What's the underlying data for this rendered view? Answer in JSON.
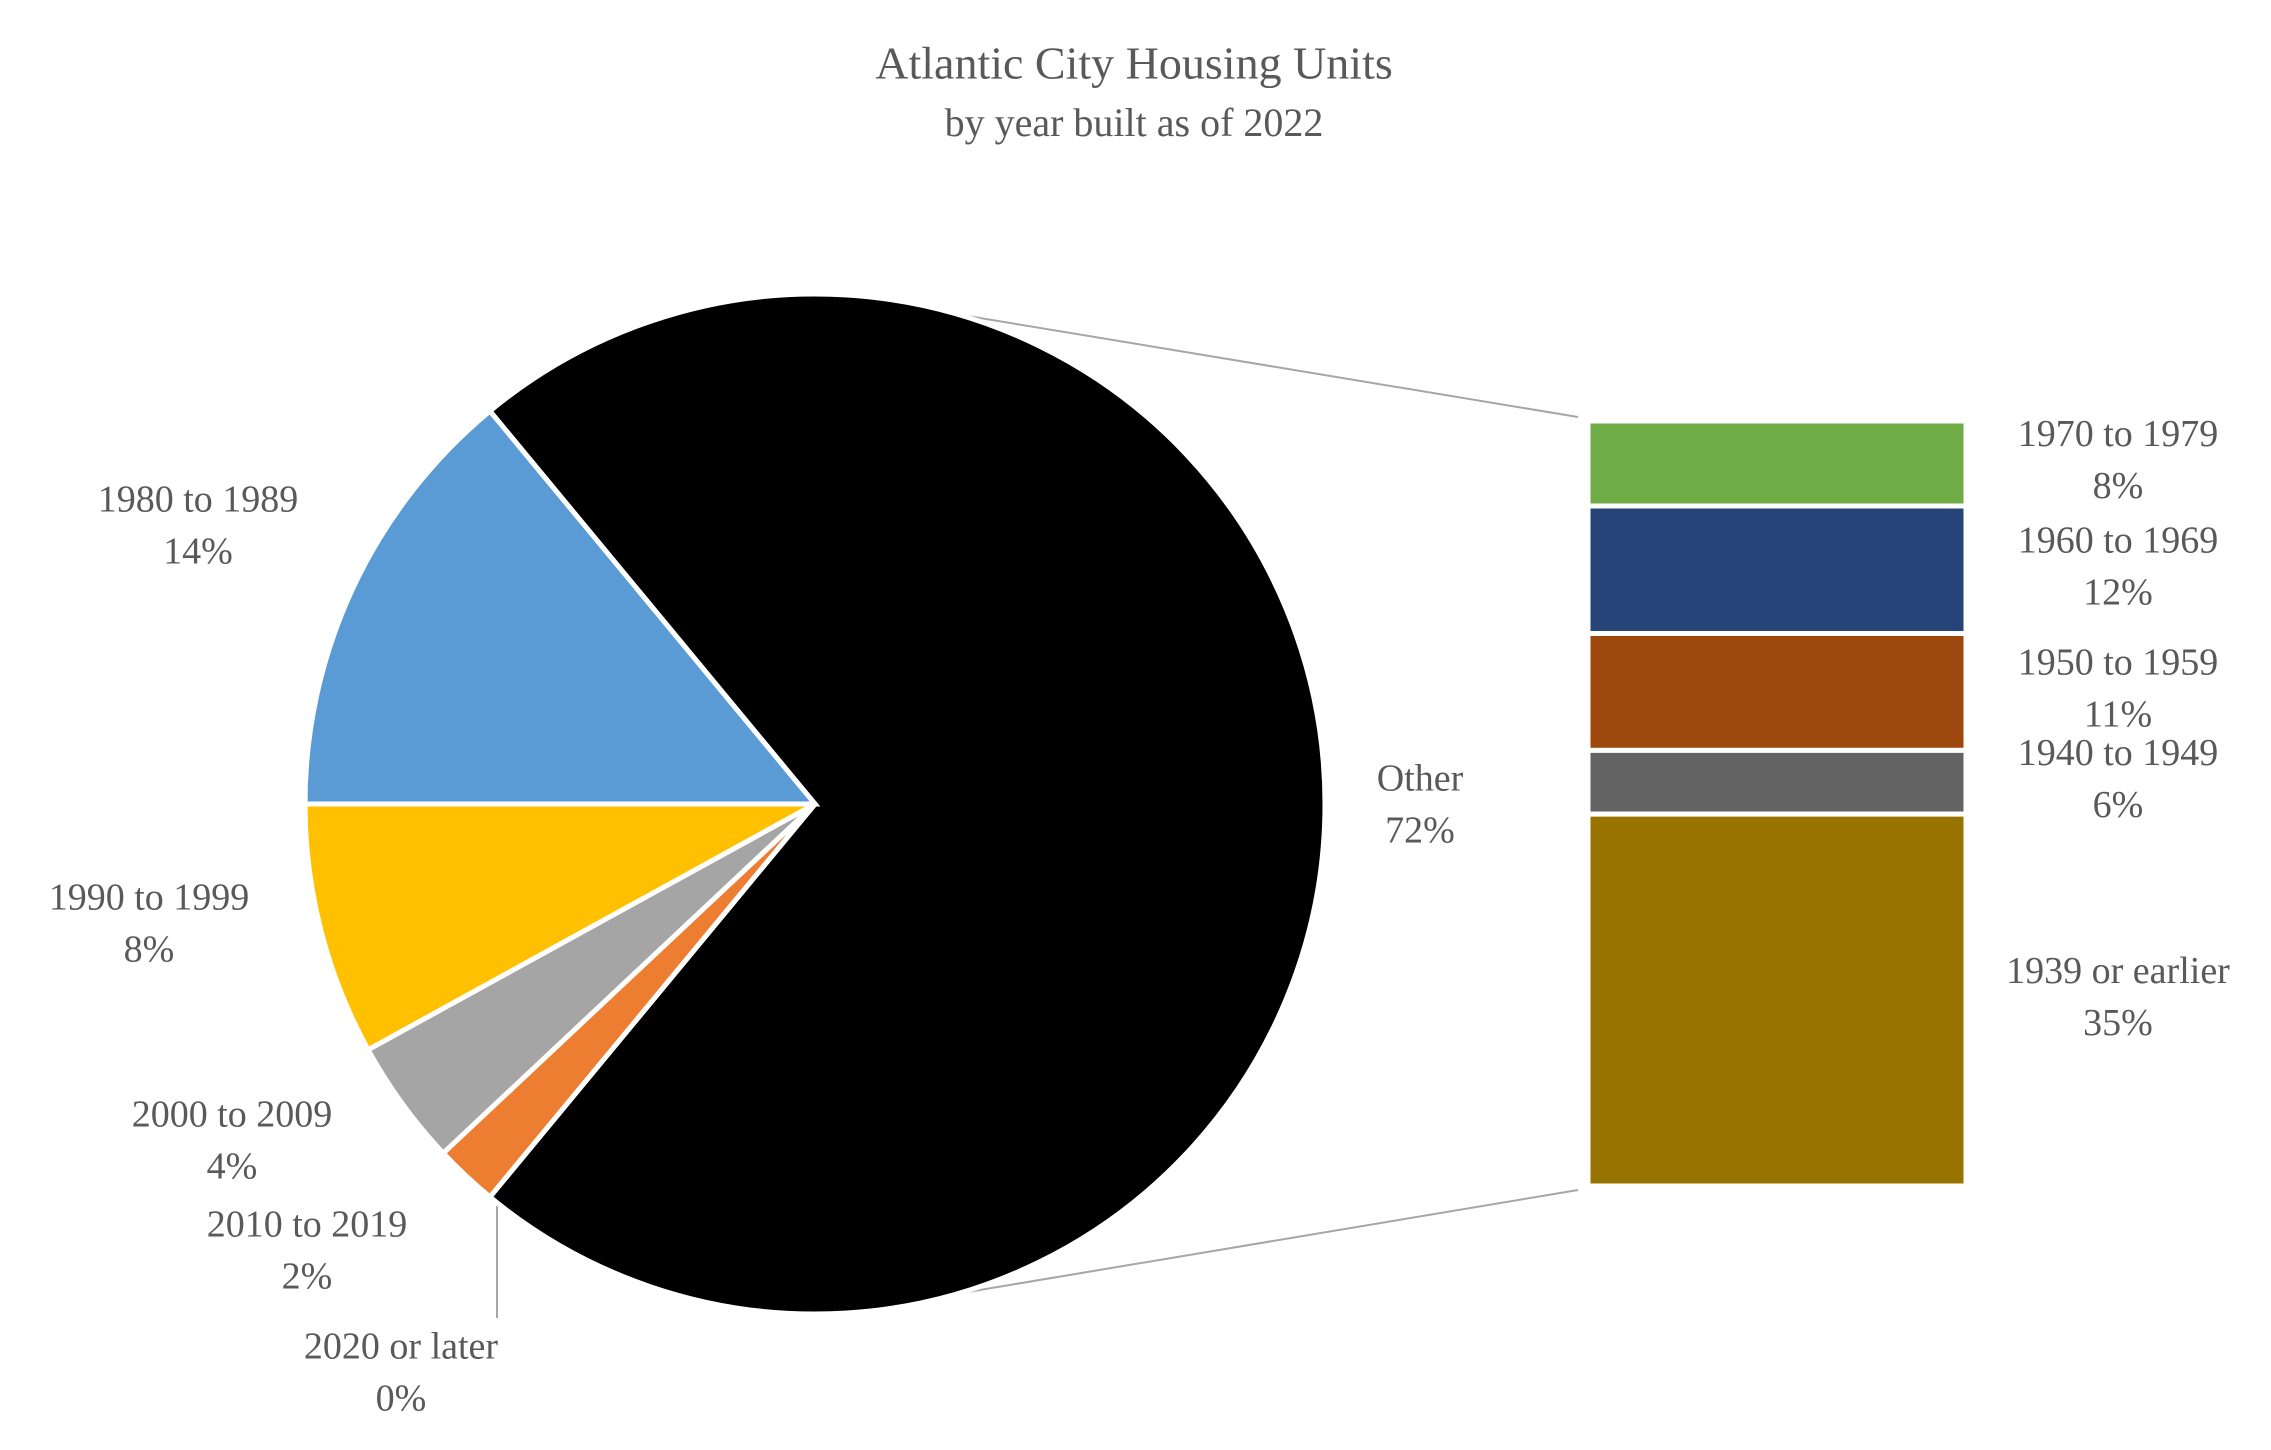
{
  "chart_data": {
    "type": "pie-of-bar",
    "title": "Atlantic City Housing Units",
    "subtitle": "by year built as of 2022",
    "categories": [
      "Other",
      "2020 or later",
      "2010 to 2019",
      "2000 to 2009",
      "1990 to 1999",
      "1980 to 1989"
    ],
    "values": [
      72,
      0,
      2,
      4,
      8,
      14
    ],
    "value_labels": [
      "72%",
      "0%",
      "2%",
      "4%",
      "8%",
      "14%"
    ],
    "colors": [
      "#000000",
      "#4472c4",
      "#ed7d31",
      "#a5a5a5",
      "#ffc000",
      "#5b9bd5"
    ],
    "breakdown": {
      "categories": [
        "1970 to 1979",
        "1960 to 1969",
        "1950 to 1959",
        "1940 to 1949",
        "1939 or earlier"
      ],
      "values": [
        8,
        12,
        11,
        6,
        35
      ],
      "value_labels": [
        "8%",
        "12%",
        "11%",
        "6%",
        "35%"
      ],
      "colors": [
        "#70ad47",
        "#264478",
        "#9e480e",
        "#636363",
        "#997300"
      ]
    }
  }
}
